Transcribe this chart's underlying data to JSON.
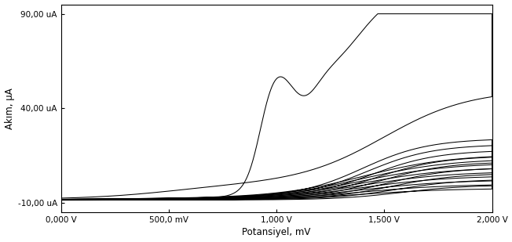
{
  "xlabel": "Potansiyel, mV",
  "ylabel": "Akım, μA",
  "xlim": [
    0,
    2000
  ],
  "ylim": [
    -15,
    95
  ],
  "xticks": [
    0,
    500,
    1000,
    1500,
    2000
  ],
  "xtick_labels": [
    "0,000 V",
    "500,0 mV",
    "1,000 V",
    "1,500 V",
    "2,000 V"
  ],
  "yticks": [
    -10,
    40,
    90
  ],
  "ytick_labels": [
    "-10,00 uA",
    "40,00 uA",
    "90,00 uA"
  ],
  "n_cycles": 10,
  "background_color": "#ffffff",
  "line_color": "#000000",
  "figsize": [
    6.52,
    3.09
  ],
  "dpi": 100
}
